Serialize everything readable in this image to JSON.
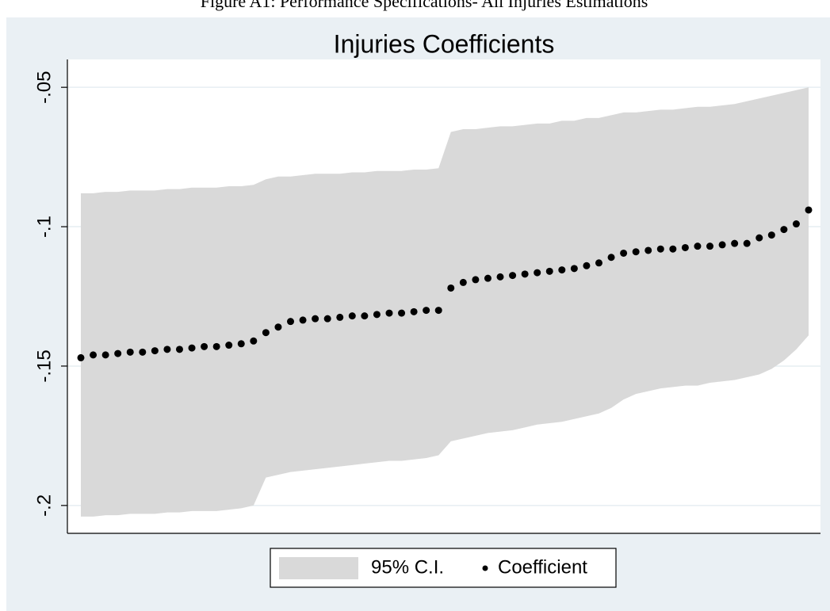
{
  "caption": "Figure A1: Performance Specifications- All Injuries Estimations",
  "chart_data": {
    "type": "spec_curve",
    "title": "Injuries Coefficients",
    "ylim": [
      -0.21,
      -0.04
    ],
    "yticks": [
      {
        "value": -0.05,
        "label": "-.05"
      },
      {
        "value": -0.1,
        "label": "-.1"
      },
      {
        "value": -0.15,
        "label": "-.15"
      },
      {
        "value": -0.2,
        "label": "-.2"
      }
    ],
    "grid": true,
    "legend": "bottom",
    "series": [
      {
        "name": "95% C.I.",
        "color": "#d9d9d9",
        "upper": [
          -0.088,
          -0.088,
          -0.0875,
          -0.0875,
          -0.087,
          -0.087,
          -0.087,
          -0.0865,
          -0.0865,
          -0.086,
          -0.086,
          -0.086,
          -0.0855,
          -0.0855,
          -0.085,
          -0.083,
          -0.082,
          -0.082,
          -0.0815,
          -0.081,
          -0.081,
          -0.081,
          -0.0805,
          -0.0805,
          -0.08,
          -0.08,
          -0.08,
          -0.0795,
          -0.0795,
          -0.079,
          -0.066,
          -0.065,
          -0.065,
          -0.0645,
          -0.064,
          -0.064,
          -0.0635,
          -0.063,
          -0.063,
          -0.062,
          -0.062,
          -0.061,
          -0.061,
          -0.06,
          -0.059,
          -0.059,
          -0.0585,
          -0.058,
          -0.058,
          -0.0575,
          -0.057,
          -0.057,
          -0.0565,
          -0.056,
          -0.055,
          -0.054,
          -0.053,
          -0.052,
          -0.051,
          -0.05
        ],
        "lower": [
          -0.204,
          -0.204,
          -0.2035,
          -0.2035,
          -0.203,
          -0.203,
          -0.203,
          -0.2025,
          -0.2025,
          -0.202,
          -0.202,
          -0.202,
          -0.2015,
          -0.201,
          -0.2,
          -0.19,
          -0.189,
          -0.188,
          -0.1875,
          -0.187,
          -0.1865,
          -0.186,
          -0.1855,
          -0.185,
          -0.1845,
          -0.184,
          -0.184,
          -0.1835,
          -0.183,
          -0.182,
          -0.177,
          -0.176,
          -0.175,
          -0.174,
          -0.1735,
          -0.173,
          -0.172,
          -0.171,
          -0.1705,
          -0.17,
          -0.169,
          -0.168,
          -0.167,
          -0.165,
          -0.162,
          -0.16,
          -0.159,
          -0.158,
          -0.1575,
          -0.157,
          -0.157,
          -0.156,
          -0.1555,
          -0.155,
          -0.154,
          -0.153,
          -0.151,
          -0.148,
          -0.144,
          -0.139
        ]
      },
      {
        "name": "Coefficient",
        "color": "#000000",
        "values": [
          -0.147,
          -0.146,
          -0.146,
          -0.1455,
          -0.145,
          -0.145,
          -0.1445,
          -0.144,
          -0.144,
          -0.1435,
          -0.143,
          -0.143,
          -0.1425,
          -0.142,
          -0.141,
          -0.138,
          -0.136,
          -0.134,
          -0.1335,
          -0.133,
          -0.133,
          -0.1325,
          -0.132,
          -0.132,
          -0.1315,
          -0.131,
          -0.131,
          -0.1305,
          -0.13,
          -0.13,
          -0.122,
          -0.12,
          -0.119,
          -0.1185,
          -0.118,
          -0.1175,
          -0.117,
          -0.1165,
          -0.116,
          -0.1155,
          -0.115,
          -0.114,
          -0.113,
          -0.111,
          -0.1095,
          -0.109,
          -0.1085,
          -0.108,
          -0.108,
          -0.1075,
          -0.107,
          -0.107,
          -0.1065,
          -0.106,
          -0.106,
          -0.104,
          -0.103,
          -0.101,
          -0.099,
          -0.094
        ]
      }
    ]
  }
}
